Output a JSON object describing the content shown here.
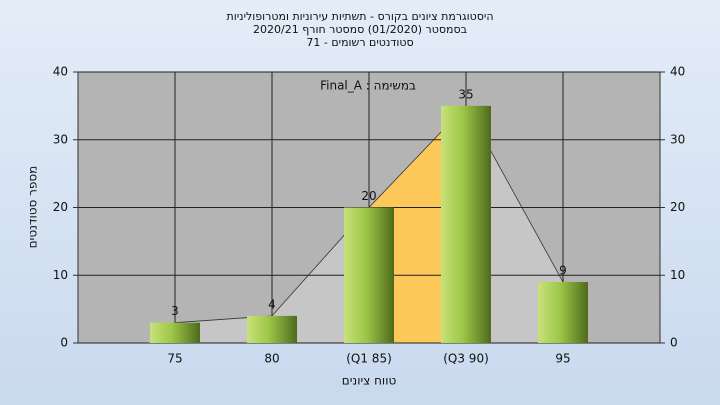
{
  "chart_data": {
    "type": "bar",
    "title": [
      "היסטוגרמת ציונים בקורס - תשתיות עירוניות ומטרופוליניות",
      "בסמסטר  (01/2020)  סמסטר חורף  2020/21",
      "סטודנטים רשומים - 71"
    ],
    "annotation": "Final_A : במשימה",
    "x_label": "טווח ציונים",
    "y_label": "מספר סטודנטים",
    "categories": [
      "75",
      "80",
      "(Q1 85)",
      "(Q3 90)",
      "95"
    ],
    "values": [
      3,
      4,
      20,
      35,
      9
    ],
    "color": "#a6cc50",
    "ylim": [
      0,
      40
    ],
    "yticks": [
      0,
      10,
      20,
      30,
      40
    ],
    "y2lim": [
      0,
      40
    ],
    "y2ticks": [
      0,
      10,
      20,
      30,
      40
    ],
    "grid": true
  }
}
